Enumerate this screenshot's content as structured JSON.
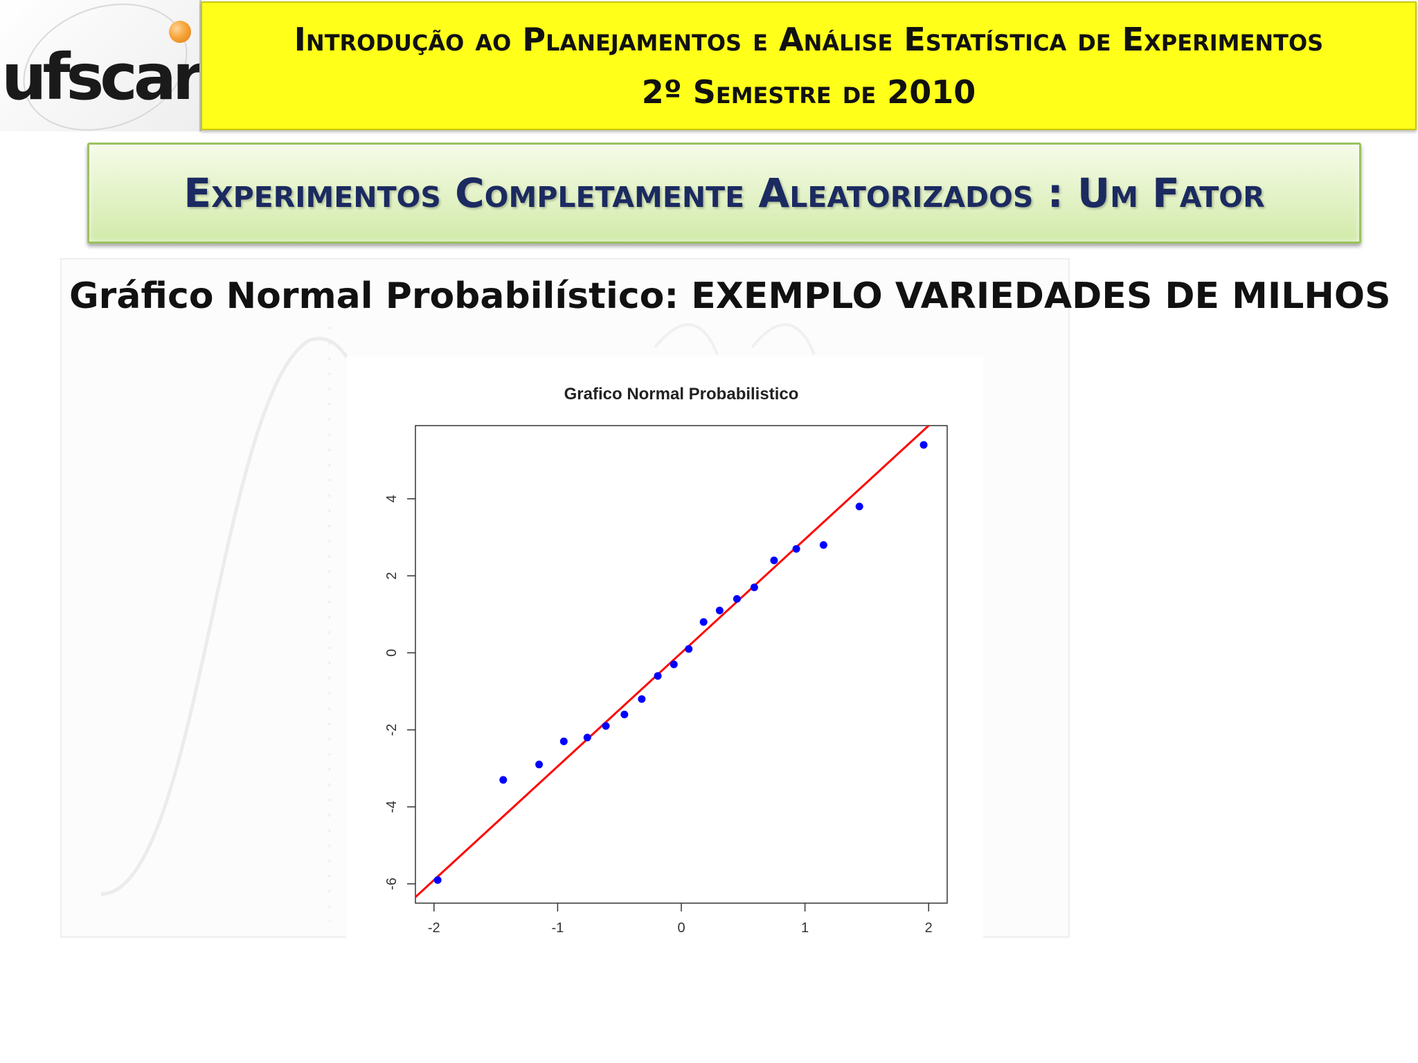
{
  "logo": {
    "text": "ufscar"
  },
  "header": {
    "line1": "Introdução ao Planejamentos e Análise Estatística de Experimentos",
    "line2": "2º Semestre de 2010"
  },
  "banner": {
    "title": "Experimentos Completamente Aleatorizados : Um Fator"
  },
  "slide": {
    "subtitle": "Gráfico Normal Probabilístico: EXEMPLO VARIEDADES DE MILHOS"
  },
  "colors": {
    "points": "#0000ff",
    "line": "#ff0000",
    "header_bg": "#ffff1a",
    "banner_text": "#1b2a60"
  },
  "chart_data": {
    "type": "scatter",
    "title": "Grafico Normal Probabilistico",
    "xlabel": "",
    "ylabel": "",
    "xlim": [
      -2.15,
      2.15
    ],
    "ylim": [
      -6.5,
      5.9
    ],
    "xticks": [
      -2,
      -1,
      0,
      1,
      2
    ],
    "yticks": [
      -6,
      -4,
      -2,
      0,
      2,
      4
    ],
    "points": [
      {
        "x": -1.97,
        "y": -5.9
      },
      {
        "x": -1.44,
        "y": -3.3
      },
      {
        "x": -1.15,
        "y": -2.9
      },
      {
        "x": -0.95,
        "y": -2.3
      },
      {
        "x": -0.76,
        "y": -2.2
      },
      {
        "x": -0.61,
        "y": -1.9
      },
      {
        "x": -0.46,
        "y": -1.6
      },
      {
        "x": -0.32,
        "y": -1.2
      },
      {
        "x": -0.19,
        "y": -0.6
      },
      {
        "x": -0.06,
        "y": -0.3
      },
      {
        "x": 0.06,
        "y": 0.1
      },
      {
        "x": 0.18,
        "y": 0.8
      },
      {
        "x": 0.31,
        "y": 1.1
      },
      {
        "x": 0.45,
        "y": 1.4
      },
      {
        "x": 0.59,
        "y": 1.7
      },
      {
        "x": 0.75,
        "y": 2.4
      },
      {
        "x": 0.93,
        "y": 2.7
      },
      {
        "x": 1.15,
        "y": 2.8
      },
      {
        "x": 1.44,
        "y": 3.8
      },
      {
        "x": 1.96,
        "y": 5.4
      }
    ],
    "reference_line": {
      "intercept": 0.0,
      "slope": 2.95
    },
    "grid": false,
    "legend": "none"
  }
}
